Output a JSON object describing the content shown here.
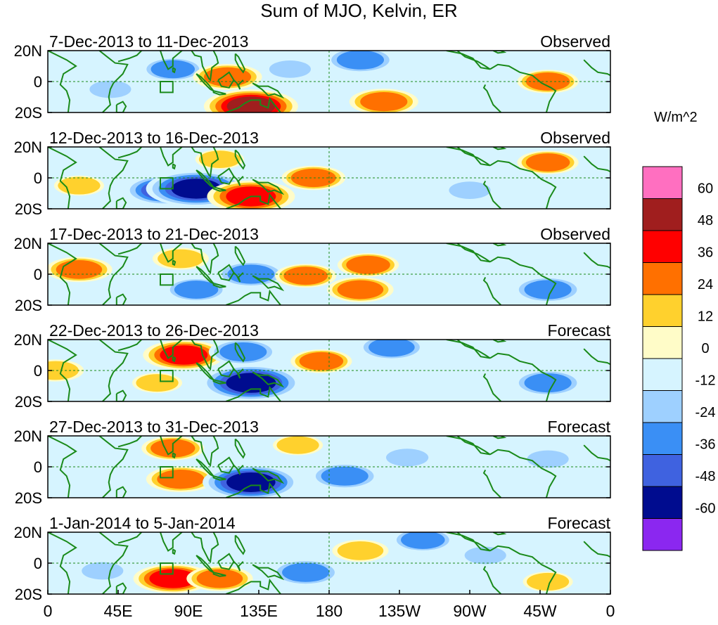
{
  "title": "Sum of MJO, Kelvin, ER",
  "colorbar": {
    "unit": "W/m^2",
    "tick_labels": [
      "60",
      "48",
      "36",
      "24",
      "12",
      "0",
      "-12",
      "-24",
      "-36",
      "-48",
      "-60"
    ],
    "colors": [
      "#ff6fc0",
      "#a01e1e",
      "#ff0000",
      "#ff7000",
      "#ffd12d",
      "#fffcc8",
      "#d6f4ff",
      "#9ed0ff",
      "#3a8ff5",
      "#3f62e0",
      "#000c8f",
      "#8b27f0"
    ]
  },
  "lat_labels": [
    "20N",
    "0",
    "20S"
  ],
  "lon_labels": [
    "0",
    "45E",
    "90E",
    "135E",
    "180",
    "135W",
    "90W",
    "45W",
    "0"
  ],
  "panels": [
    {
      "date": "7-Dec-2013 to 11-Dec-2013",
      "status": "Observed"
    },
    {
      "date": "12-Dec-2013 to 16-Dec-2013",
      "status": "Observed"
    },
    {
      "date": "17-Dec-2013 to 21-Dec-2013",
      "status": "Observed"
    },
    {
      "date": "22-Dec-2013 to 26-Dec-2013",
      "status": "Forecast"
    },
    {
      "date": "27-Dec-2013 to 31-Dec-2013",
      "status": "Forecast"
    },
    {
      "date": "1-Jan-2014 to 5-Jan-2014",
      "status": "Forecast"
    }
  ],
  "chart_data": {
    "type": "heatmap",
    "title": "Sum of MJO, Kelvin, ER",
    "xlabel": "",
    "ylabel": "",
    "lon_range": [
      0,
      360
    ],
    "lat_range": [
      -20,
      20
    ],
    "contour_levels": [
      -60,
      -48,
      -36,
      -24,
      -12,
      0,
      12,
      24,
      36,
      48,
      60
    ],
    "units": "W/m^2",
    "anomaly_features": [
      [
        {
          "lon": 80,
          "lat": 8,
          "value": -24
        },
        {
          "lon": 115,
          "lat": 3,
          "value": 30
        },
        {
          "lon": 130,
          "lat": -16,
          "value": 50
        },
        {
          "lon": 200,
          "lat": 14,
          "value": -30
        },
        {
          "lon": 215,
          "lat": -13,
          "value": 30
        },
        {
          "lon": 320,
          "lat": 0,
          "value": 24
        },
        {
          "lon": 40,
          "lat": -5,
          "value": -14
        },
        {
          "lon": 155,
          "lat": 8,
          "value": -14
        }
      ],
      [
        {
          "lon": 75,
          "lat": -8,
          "value": -40
        },
        {
          "lon": 95,
          "lat": -7,
          "value": -55
        },
        {
          "lon": 130,
          "lat": -12,
          "value": 45
        },
        {
          "lon": 170,
          "lat": 0,
          "value": 26
        },
        {
          "lon": 320,
          "lat": 10,
          "value": 24
        },
        {
          "lon": 20,
          "lat": -5,
          "value": 15
        },
        {
          "lon": 270,
          "lat": -8,
          "value": -14
        },
        {
          "lon": 110,
          "lat": 12,
          "value": 14
        }
      ],
      [
        {
          "lon": 130,
          "lat": 0,
          "value": -30
        },
        {
          "lon": 95,
          "lat": -10,
          "value": -24
        },
        {
          "lon": 20,
          "lat": 3,
          "value": 28
        },
        {
          "lon": 200,
          "lat": -10,
          "value": 28
        },
        {
          "lon": 205,
          "lat": 6,
          "value": 24
        },
        {
          "lon": 320,
          "lat": -10,
          "value": -30
        },
        {
          "lon": 85,
          "lat": 10,
          "value": 20
        },
        {
          "lon": 165,
          "lat": -1,
          "value": 24
        }
      ],
      [
        {
          "lon": 87,
          "lat": 10,
          "value": 40
        },
        {
          "lon": 130,
          "lat": -8,
          "value": -55
        },
        {
          "lon": 125,
          "lat": 12,
          "value": -30
        },
        {
          "lon": 220,
          "lat": 15,
          "value": -28
        },
        {
          "lon": 320,
          "lat": -8,
          "value": -30
        },
        {
          "lon": 5,
          "lat": 0,
          "value": 20
        },
        {
          "lon": 175,
          "lat": 6,
          "value": 24
        },
        {
          "lon": 70,
          "lat": -8,
          "value": 15
        }
      ],
      [
        {
          "lon": 85,
          "lat": -8,
          "value": 30
        },
        {
          "lon": 130,
          "lat": -10,
          "value": -52
        },
        {
          "lon": 190,
          "lat": -6,
          "value": -30
        },
        {
          "lon": 80,
          "lat": 12,
          "value": 25
        },
        {
          "lon": 160,
          "lat": 14,
          "value": 15
        },
        {
          "lon": 320,
          "lat": 5,
          "value": -14
        },
        {
          "lon": 230,
          "lat": 6,
          "value": -15
        }
      ],
      [
        {
          "lon": 80,
          "lat": -10,
          "value": 38
        },
        {
          "lon": 110,
          "lat": -10,
          "value": 28
        },
        {
          "lon": 165,
          "lat": -6,
          "value": -30
        },
        {
          "lon": 200,
          "lat": 8,
          "value": 20
        },
        {
          "lon": 240,
          "lat": 15,
          "value": -24
        },
        {
          "lon": 320,
          "lat": -12,
          "value": 15
        },
        {
          "lon": 280,
          "lat": 5,
          "value": -14
        },
        {
          "lon": 35,
          "lat": -5,
          "value": -14
        }
      ]
    ]
  }
}
